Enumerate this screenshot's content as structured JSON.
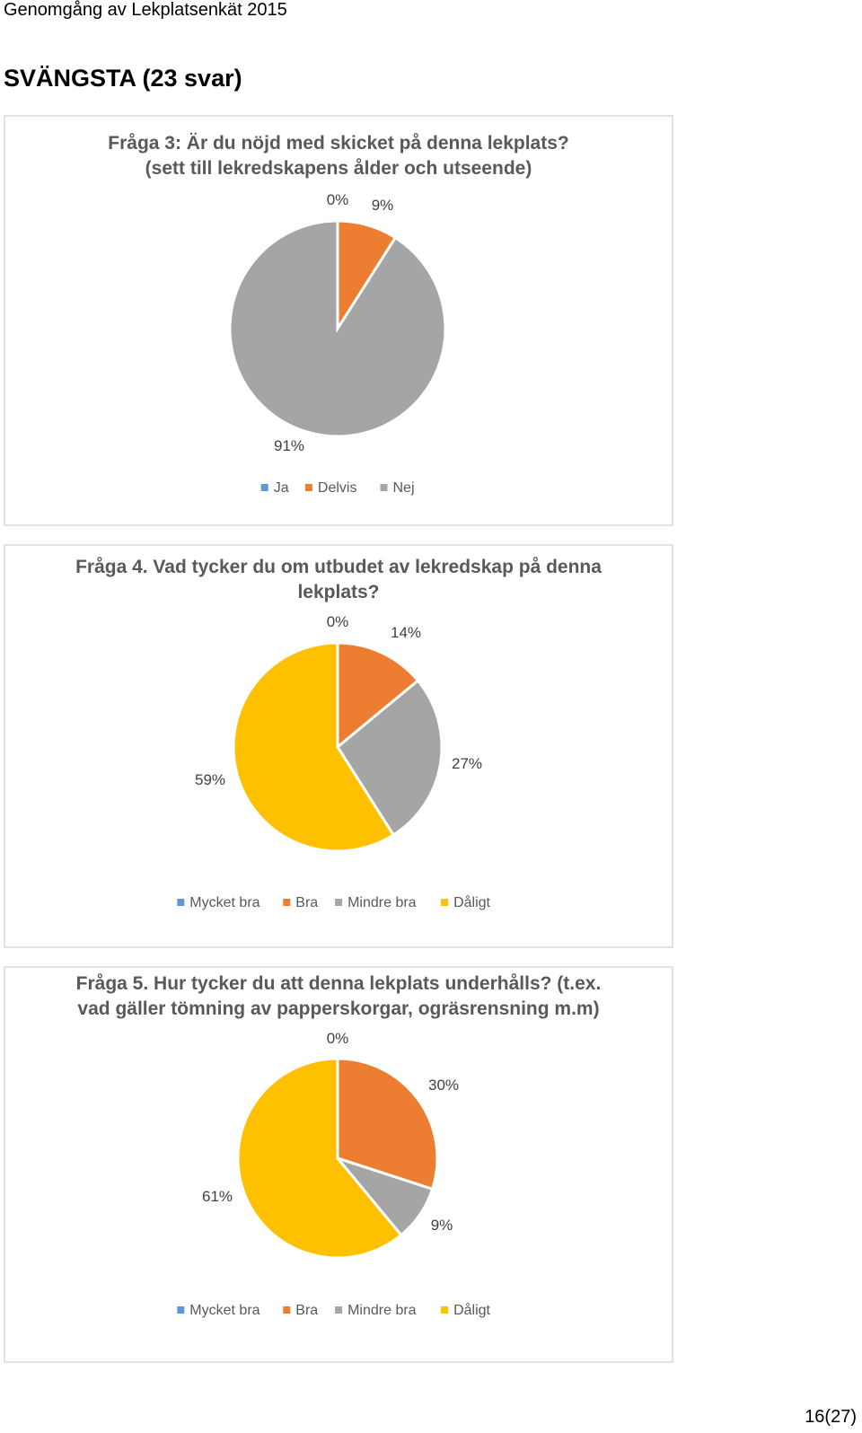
{
  "header": {
    "title": "Genomgång av Lekplatsenkät 2015"
  },
  "section": {
    "title": "SVÄNGSTA (23 svar)"
  },
  "colors": {
    "ja": "#5B9BD5",
    "bra": "#ED7D31",
    "gray": "#A5A5A5",
    "yellow": "#FFC000"
  },
  "chart_data": [
    {
      "type": "pie",
      "title": [
        "Fråga 3: Är du nöjd med skicket på denna lekplats?",
        "(sett till lekredskapens ålder och utseende)"
      ],
      "categories": [
        "Ja",
        "Delvis",
        "Nej"
      ],
      "values": [
        0,
        9,
        91
      ],
      "labels": [
        "0%",
        "9%",
        "91%"
      ],
      "colors": [
        "#5B9BD5",
        "#ED7D31",
        "#A5A5A5"
      ],
      "legend": "bottom"
    },
    {
      "type": "pie",
      "title": [
        "Fråga 4. Vad tycker du om utbudet av lekredskap på denna",
        "lekplats?"
      ],
      "categories": [
        "Mycket bra",
        "Bra",
        "Mindre bra",
        "Dåligt"
      ],
      "values": [
        0,
        14,
        27,
        59
      ],
      "labels": [
        "0%",
        "14%",
        "27%",
        "59%"
      ],
      "colors": [
        "#5B9BD5",
        "#ED7D31",
        "#A5A5A5",
        "#FFC000"
      ],
      "legend": "bottom"
    },
    {
      "type": "pie",
      "title": [
        "Fråga 5. Hur tycker du att denna lekplats underhålls? (t.ex.",
        "vad gäller tömning av papperskorgar, ogräsrensning m.m)"
      ],
      "categories": [
        "Mycket bra",
        "Bra",
        "Mindre bra",
        "Dåligt"
      ],
      "values": [
        0,
        30,
        9,
        61
      ],
      "labels": [
        "0%",
        "30%",
        "9%",
        "61%"
      ],
      "colors": [
        "#5B9BD5",
        "#ED7D31",
        "#A5A5A5",
        "#FFC000"
      ],
      "legend": "bottom"
    }
  ],
  "footer": {
    "page": "16(27)"
  }
}
